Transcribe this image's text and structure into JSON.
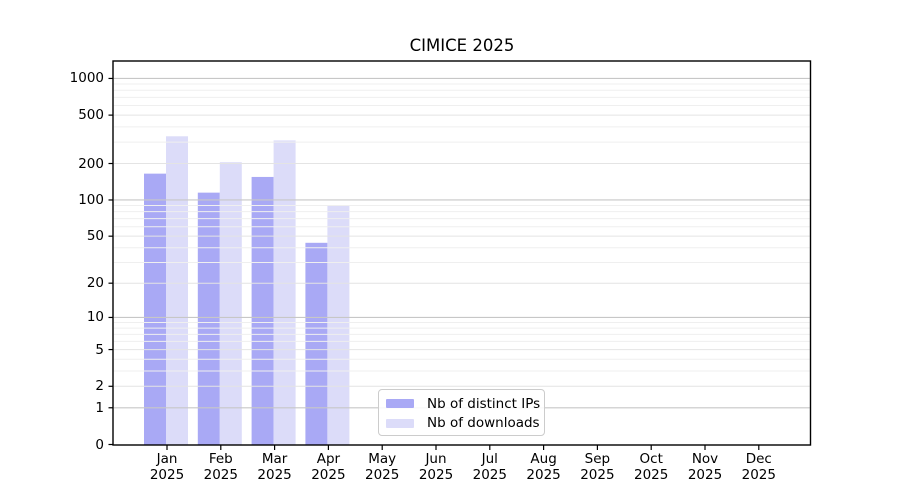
{
  "chart_data": {
    "type": "bar",
    "title": "CIMICE 2025",
    "categories": [
      "Jan",
      "Feb",
      "Mar",
      "Apr",
      "May",
      "Jun",
      "Jul",
      "Aug",
      "Sep",
      "Oct",
      "Nov",
      "Dec"
    ],
    "category_year": "2025",
    "series": [
      {
        "name": "Nb of distinct IPs",
        "color": "#a9a9f5",
        "values": [
          165,
          115,
          155,
          44,
          0,
          0,
          0,
          0,
          0,
          0,
          0,
          0
        ]
      },
      {
        "name": "Nb of downloads",
        "color": "#dcdcf9",
        "values": [
          335,
          205,
          310,
          90,
          0,
          0,
          0,
          0,
          0,
          0,
          0,
          0
        ]
      }
    ],
    "yscale": "log(1+y)",
    "ylim": [
      0,
      1390
    ],
    "ytick_labels": [
      "1000",
      "500",
      "200",
      "100",
      "50",
      "20",
      "10",
      "5",
      "2",
      "1",
      "0"
    ],
    "ytick_values": [
      1000,
      500,
      200,
      100,
      50,
      20,
      10,
      5,
      2,
      1,
      0
    ],
    "ytick_major_values": [
      1000,
      100,
      10,
      1
    ],
    "ytick_minor_unlabeled": [
      3,
      4,
      6,
      7,
      8,
      9,
      30,
      40,
      60,
      70,
      80,
      90,
      300,
      400,
      600,
      700,
      800,
      900
    ],
    "grid": "horizontal, drawn over bars",
    "grid_color_major": "#c7c7c7",
    "grid_color_minor": "#e4e4e4",
    "grid_color_faint": "#efefef",
    "axis_color": "#000000",
    "legend_position": "lower center inside plot",
    "legend_entries": [
      "Nb of distinct IPs",
      "Nb of downloads"
    ]
  }
}
